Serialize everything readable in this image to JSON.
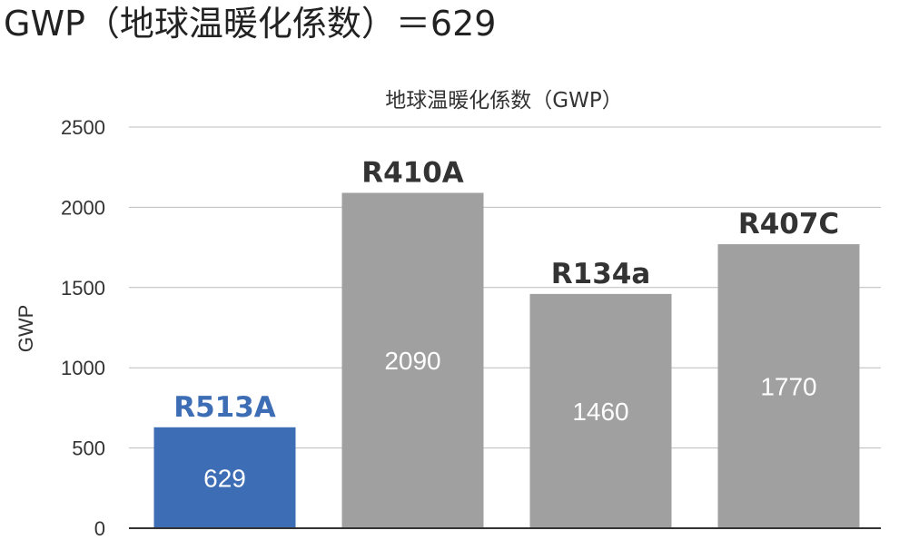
{
  "page_heading": "GWP（地球温暖化係数）＝629",
  "chart_data": {
    "type": "bar",
    "title": "地球温暖化係数（GWP）",
    "ylabel": "GWP",
    "xlabel": "",
    "ylim": [
      0,
      2500
    ],
    "yticks": [
      0,
      500,
      1000,
      1500,
      2000,
      2500
    ],
    "grid": true,
    "categories": [
      "R513A",
      "R410A",
      "R134a",
      "R407C"
    ],
    "values": [
      629,
      2090,
      1460,
      1770
    ],
    "bar_colors": [
      "#3d6db5",
      "#a0a0a0",
      "#a0a0a0",
      "#a0a0a0"
    ],
    "category_label_colors": [
      "#3d6db5",
      "#333333",
      "#333333",
      "#333333"
    ],
    "grid_color": "#bbbbbb",
    "axis_color": "#333333"
  }
}
